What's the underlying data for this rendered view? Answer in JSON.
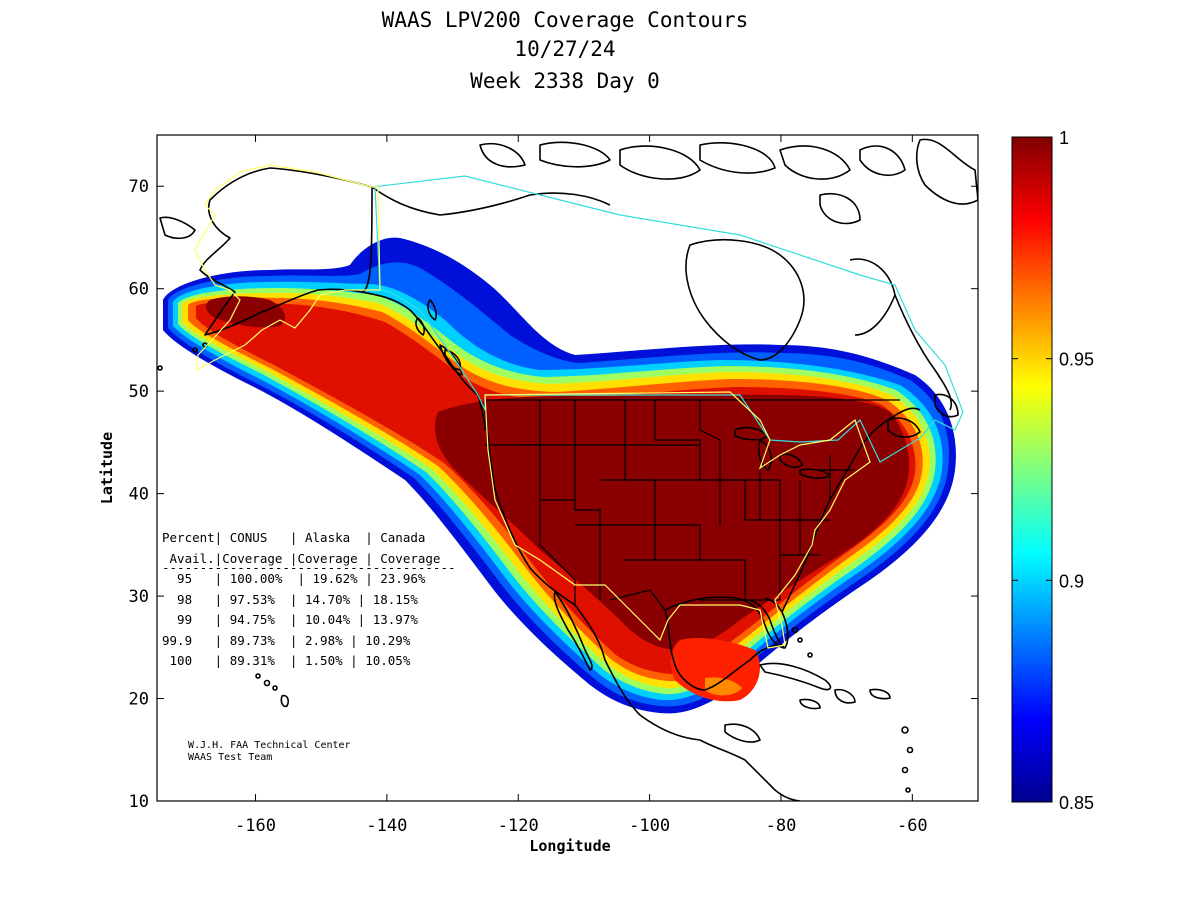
{
  "title": {
    "line1": "WAAS LPV200 Coverage Contours",
    "line2": "10/27/24",
    "line3": "Week 2338 Day 0"
  },
  "axes": {
    "xlabel": "Longitude",
    "ylabel": "Latitude",
    "xlim": [
      -175,
      -50
    ],
    "ylim": [
      10,
      75
    ],
    "xticks": [
      -160,
      -140,
      -120,
      -100,
      -80,
      -60
    ],
    "yticks": [
      10,
      20,
      30,
      40,
      50,
      60,
      70
    ]
  },
  "colorbar": {
    "min": 0.85,
    "max": 1,
    "ticks": [
      "1",
      "0.95",
      "0.9",
      "0.85"
    ],
    "tick_values": [
      1,
      0.95,
      0.9,
      0.85
    ],
    "colormap": "jet"
  },
  "coverage_table": {
    "header1": "Percent| CONUS   | Alaska  | Canada",
    "header2": " Avail.|Coverage |Coverage | Coverage",
    "rule": "---------------------------------------",
    "rows": [
      "  95   | 100.00%  | 19.62% | 23.96%",
      "  98   | 97.53%  | 14.70% | 18.15%",
      "  99   | 94.75%  | 10.04% | 13.97%",
      "99.9   | 89.73%  | 2.98% | 10.29%",
      " 100   | 89.31%  | 1.50% | 10.05%"
    ]
  },
  "chart_data": {
    "type": "heatmap",
    "title": "WAAS LPV200 Coverage Contours",
    "subtitle": [
      "10/27/24",
      "Week 2338 Day 0"
    ],
    "xlabel": "Longitude",
    "ylabel": "Latitude",
    "xlim": [
      -175,
      -50
    ],
    "ylim": [
      10,
      75
    ],
    "value_range": [
      0.85,
      1
    ],
    "table": {
      "columns": [
        "Percent Avail.",
        "CONUS Coverage",
        "Alaska Coverage",
        "Canada Coverage"
      ],
      "rows": [
        [
          "95",
          "100.00%",
          "19.62%",
          "23.96%"
        ],
        [
          "98",
          "97.53%",
          "14.70%",
          "18.15%"
        ],
        [
          "99",
          "94.75%",
          "10.04%",
          "13.97%"
        ],
        [
          "99.9",
          "89.73%",
          "2.98%",
          "10.29%"
        ],
        [
          "100",
          "89.31%",
          "1.50%",
          "10.05%"
        ]
      ]
    }
  },
  "credit": {
    "line1": "W.J.H. FAA Technical Center",
    "line2": "WAAS Test Team"
  },
  "colors": {
    "conus_boundary": "#ffff66",
    "alaska_boundary": "#ffff66",
    "canada_boundary": "#33dddd",
    "coastline": "#000000"
  }
}
